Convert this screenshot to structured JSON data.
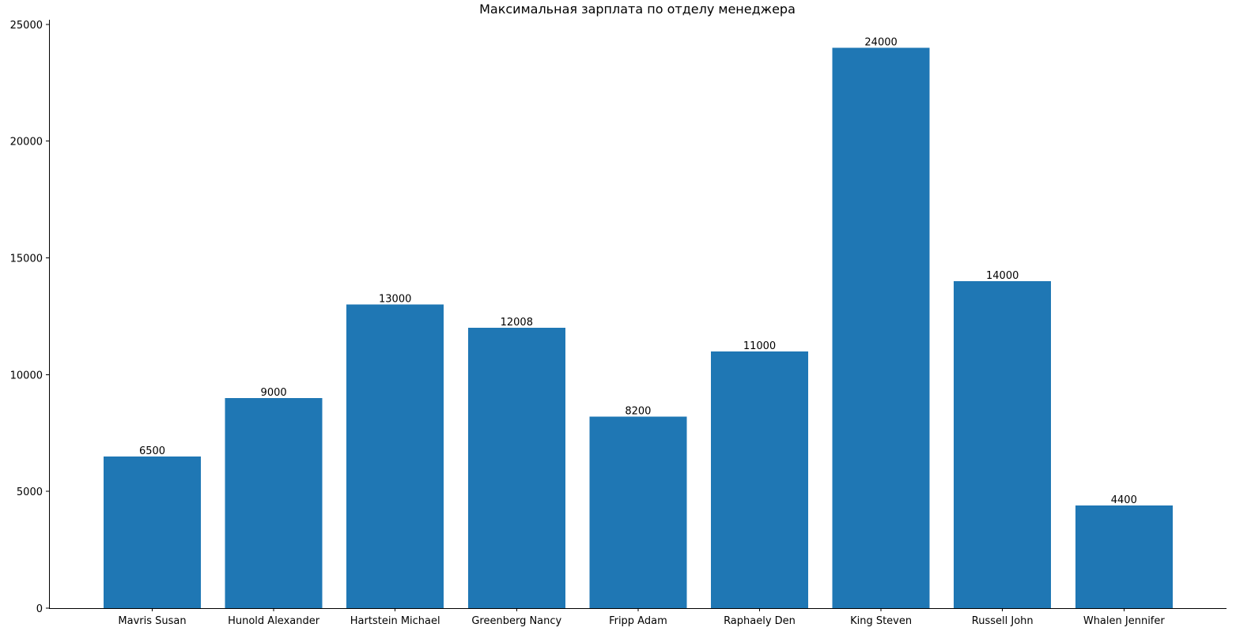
{
  "chart_data": {
    "type": "bar",
    "title": "Максимальная зарплата по отделу менеджера",
    "xlabel": "",
    "ylabel": "",
    "categories": [
      "Mavris Susan",
      "Hunold Alexander",
      "Hartstein Michael",
      "Greenberg Nancy",
      "Fripp Adam",
      "Raphaely Den",
      "King Steven",
      "Russell John",
      "Whalen Jennifer"
    ],
    "values": [
      6500,
      9000,
      13000,
      12008,
      8200,
      11000,
      24000,
      14000,
      4400
    ],
    "data_labels": [
      "6500",
      "9000",
      "13000",
      "12008",
      "8200",
      "11000",
      "24000",
      "14000",
      "4400"
    ],
    "yticks": [
      0,
      5000,
      10000,
      15000,
      20000,
      25000
    ],
    "ylim": [
      0,
      25200
    ],
    "grid": false,
    "legend": "none",
    "bar_color": "#1f77b4"
  }
}
